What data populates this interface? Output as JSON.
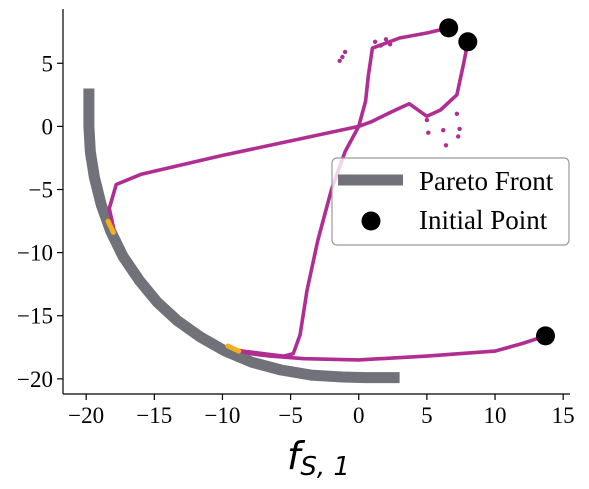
{
  "chart_data": {
    "type": "scatter",
    "xlabel_main": "f",
    "xlabel_sub": "S, 1",
    "xlim": [
      -21.7,
      15.5
    ],
    "ylim": [
      -21.2,
      9.3
    ],
    "xticks": [
      -20,
      -15,
      -10,
      -5,
      0,
      5,
      10,
      15
    ],
    "xtick_labels": [
      "−20",
      "−15",
      "−10",
      "−5",
      "0",
      "5",
      "10",
      "15"
    ],
    "yticks": [
      -20,
      -15,
      -10,
      -5,
      0,
      5
    ],
    "ytick_labels": [
      "−20",
      "−15",
      "−10",
      "−5",
      "0",
      "5"
    ],
    "legend": {
      "placement": "center-right",
      "entries": [
        "Pareto Front",
        "Initial Point"
      ]
    },
    "colors": {
      "pareto": "#717179",
      "trajectory": "#b02e92",
      "optimum": "#f2b01e",
      "initial": "#000000"
    },
    "series": [
      {
        "name": "Pareto Front",
        "kind": "band",
        "x": [
          -19.8,
          -19.8,
          -19.7,
          -19.4,
          -18.9,
          -18.2,
          -17.3,
          -16.1,
          -14.8,
          -13.3,
          -11.6,
          -9.8,
          -7.8,
          -5.7,
          -3.5,
          -1.2,
          0.5,
          3.0
        ],
        "y": [
          3.0,
          0.0,
          -2.0,
          -4.0,
          -6.2,
          -8.3,
          -10.3,
          -12.2,
          -13.9,
          -15.4,
          -16.7,
          -17.8,
          -18.7,
          -19.3,
          -19.7,
          -19.85,
          -19.9,
          -19.9
        ]
      },
      {
        "name": "Initial Point",
        "kind": "points",
        "x": [
          6.6,
          8.0,
          13.7
        ],
        "y": [
          7.8,
          6.7,
          -16.6
        ]
      }
    ],
    "trajectories": [
      {
        "x": [
          6.6,
          5.0,
          3.0,
          1.0,
          0.7,
          0.5,
          0.0
        ],
        "y": [
          7.8,
          7.4,
          7.0,
          6.2,
          4.0,
          2.0,
          0.0
        ]
      },
      {
        "x": [
          8.0,
          7.7,
          7.2,
          6.0,
          5.0,
          3.7,
          2.5,
          1.0,
          0.0
        ],
        "y": [
          6.7,
          5.0,
          2.5,
          1.3,
          0.8,
          1.8,
          1.2,
          0.4,
          0.0
        ]
      },
      {
        "x": [
          0.0,
          -10.0,
          -16.0,
          -17.8,
          -18.3,
          -18.0
        ],
        "y": [
          0.0,
          -2.3,
          -3.8,
          -4.6,
          -6.5,
          -8.0
        ]
      },
      {
        "x": [
          0.0,
          -1.0,
          -2.0,
          -3.0,
          -3.8,
          -4.3,
          -4.8,
          -5.5,
          -7.0,
          -8.5,
          -9.0
        ],
        "y": [
          0.0,
          -2.0,
          -5.0,
          -9.0,
          -13.0,
          -16.5,
          -18.0,
          -18.2,
          -18.0,
          -17.8,
          -17.7
        ]
      },
      {
        "x": [
          13.7,
          12.0,
          10.0,
          5.0,
          0.0,
          -4.0,
          -6.5,
          -8.0,
          -9.0
        ],
        "y": [
          -16.6,
          -17.2,
          -17.8,
          -18.2,
          -18.5,
          -18.4,
          -18.2,
          -18.0,
          -17.7
        ]
      }
    ],
    "scatter_points": {
      "x": [
        1.2,
        1.6,
        2.0,
        2.3,
        -1.0,
        -1.2,
        -1.4,
        5.0,
        5.1,
        6.2,
        6.4,
        7.2,
        7.4,
        7.3
      ],
      "y": [
        6.7,
        6.4,
        6.9,
        6.5,
        5.9,
        5.5,
        5.2,
        0.5,
        -0.5,
        -0.3,
        -1.5,
        1.0,
        -0.2,
        -0.8
      ]
    },
    "optima": [
      {
        "x": [
          -18.4,
          -18.0
        ],
        "y": [
          -7.5,
          -8.4
        ]
      },
      {
        "x": [
          -9.6,
          -8.8
        ],
        "y": [
          -17.4,
          -17.8
        ]
      }
    ]
  }
}
